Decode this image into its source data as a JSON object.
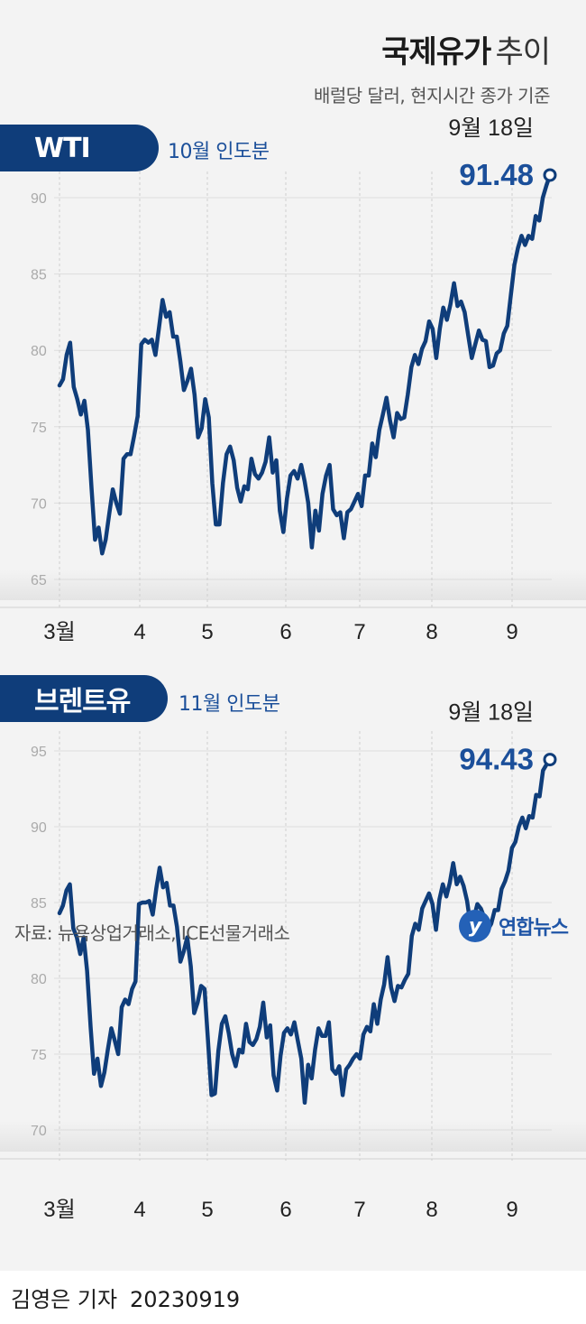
{
  "header": {
    "title_bold": "국제유가",
    "title_light": "추이",
    "subtitle": "배럴당 달러, 현지시간 종가 기준"
  },
  "colors": {
    "series": "#0f3d7a",
    "label": "#1b4f9a",
    "pill": "#0f3d7a",
    "grid": "#dcdcdc",
    "tick": "#aaaaaa"
  },
  "chart_data": [
    {
      "type": "line",
      "name": "WTI",
      "delivery": "10월 인도분",
      "last_date": "9월 18일",
      "last_value": "91.48",
      "ylim": [
        65,
        92
      ],
      "yticks": [
        65,
        70,
        75,
        80,
        85,
        90
      ],
      "xticks": [
        "3월",
        "4",
        "5",
        "6",
        "7",
        "8",
        "9"
      ],
      "values": [
        77.7,
        78.1,
        79.7,
        80.5,
        77.6,
        76.8,
        75.8,
        76.7,
        74.8,
        71.0,
        67.6,
        68.4,
        66.7,
        67.6,
        69.3,
        70.9,
        70.0,
        69.3,
        72.9,
        73.2,
        73.2,
        74.4,
        75.7,
        80.4,
        80.7,
        80.5,
        80.7,
        79.7,
        81.5,
        83.3,
        82.2,
        82.5,
        80.9,
        80.9,
        79.3,
        77.4,
        78.0,
        78.8,
        77.1,
        74.3,
        74.9,
        76.8,
        75.6,
        71.3,
        68.6,
        68.6,
        71.3,
        73.2,
        73.7,
        72.8,
        71.0,
        70.1,
        71.1,
        70.9,
        72.9,
        71.9,
        71.6,
        72.0,
        72.7,
        74.3,
        72.0,
        72.8,
        69.5,
        68.1,
        70.3,
        71.8,
        72.1,
        71.6,
        72.5,
        71.4,
        70.0,
        67.1,
        69.5,
        68.2,
        70.6,
        71.8,
        72.5,
        69.6,
        69.2,
        69.4,
        67.7,
        69.4,
        69.6,
        70.1,
        70.6,
        69.8,
        71.8,
        71.8,
        73.9,
        73.0,
        74.8,
        75.8,
        76.9,
        75.4,
        74.3,
        75.9,
        75.5,
        75.6,
        77.1,
        78.9,
        79.7,
        79.1,
        80.1,
        80.6,
        81.9,
        81.4,
        79.5,
        81.4,
        82.8,
        82.0,
        83.0,
        84.4,
        82.9,
        83.2,
        82.5,
        81.0,
        79.5,
        80.4,
        81.3,
        80.7,
        80.6,
        78.9,
        79.0,
        79.8,
        80.0,
        81.1,
        81.6,
        83.6,
        85.6,
        86.7,
        87.5,
        86.9,
        87.5,
        87.3,
        88.8,
        88.5,
        90.0,
        90.8,
        91.48
      ]
    },
    {
      "type": "line",
      "name": "브렌트유",
      "delivery": "11월 인도분",
      "last_date": "9월 18일",
      "last_value": "94.43",
      "ylim": [
        70,
        95.5
      ],
      "yticks": [
        70,
        75,
        80,
        85,
        90,
        95
      ],
      "xticks": [
        "3월",
        "4",
        "5",
        "6",
        "7",
        "8",
        "9"
      ],
      "values": [
        84.3,
        84.8,
        85.8,
        86.2,
        83.3,
        82.7,
        81.6,
        82.7,
        80.5,
        76.8,
        73.7,
        74.7,
        72.9,
        73.8,
        75.3,
        76.7,
        75.9,
        75.0,
        78.1,
        78.6,
        78.3,
        79.3,
        79.8,
        84.9,
        85.0,
        85.0,
        85.1,
        84.2,
        85.9,
        87.3,
        86.0,
        86.3,
        84.8,
        84.8,
        83.4,
        81.1,
        81.8,
        82.7,
        80.8,
        77.7,
        78.4,
        79.5,
        79.3,
        75.9,
        72.3,
        72.4,
        75.2,
        77.0,
        77.5,
        76.4,
        75.0,
        74.2,
        75.3,
        75.1,
        77.0,
        75.8,
        75.6,
        76.0,
        76.8,
        78.4,
        76.1,
        76.9,
        73.6,
        72.6,
        74.9,
        76.4,
        76.7,
        76.3,
        77.1,
        75.9,
        74.7,
        71.8,
        74.3,
        73.4,
        75.3,
        76.7,
        76.2,
        76.2,
        77.1,
        74.0,
        73.7,
        74.2,
        72.3,
        74.0,
        74.3,
        74.7,
        75.0,
        74.7,
        76.3,
        76.8,
        76.5,
        78.3,
        77.0,
        78.6,
        79.6,
        81.4,
        79.4,
        78.5,
        79.5,
        79.4,
        79.9,
        80.3,
        82.8,
        83.6,
        83.2,
        84.6,
        85.1,
        85.6,
        84.9,
        83.2,
        85.2,
        86.2,
        85.4,
        86.3,
        87.6,
        86.2,
        86.7,
        86.1,
        85.1,
        83.5,
        84.0,
        84.9,
        84.6,
        84.0,
        83.2,
        83.6,
        84.5,
        84.5,
        85.9,
        86.4,
        87.1,
        88.6,
        89.0,
        90.0,
        90.6,
        89.9,
        90.7,
        90.6,
        92.1,
        92.0,
        93.7,
        94.1,
        94.43
      ]
    }
  ],
  "footer": {
    "source": "자료: 뉴욕상업거래소, ICE선물거래소",
    "logo_text": "연합뉴스",
    "byline": "김영은 기자",
    "date": "20230919"
  }
}
